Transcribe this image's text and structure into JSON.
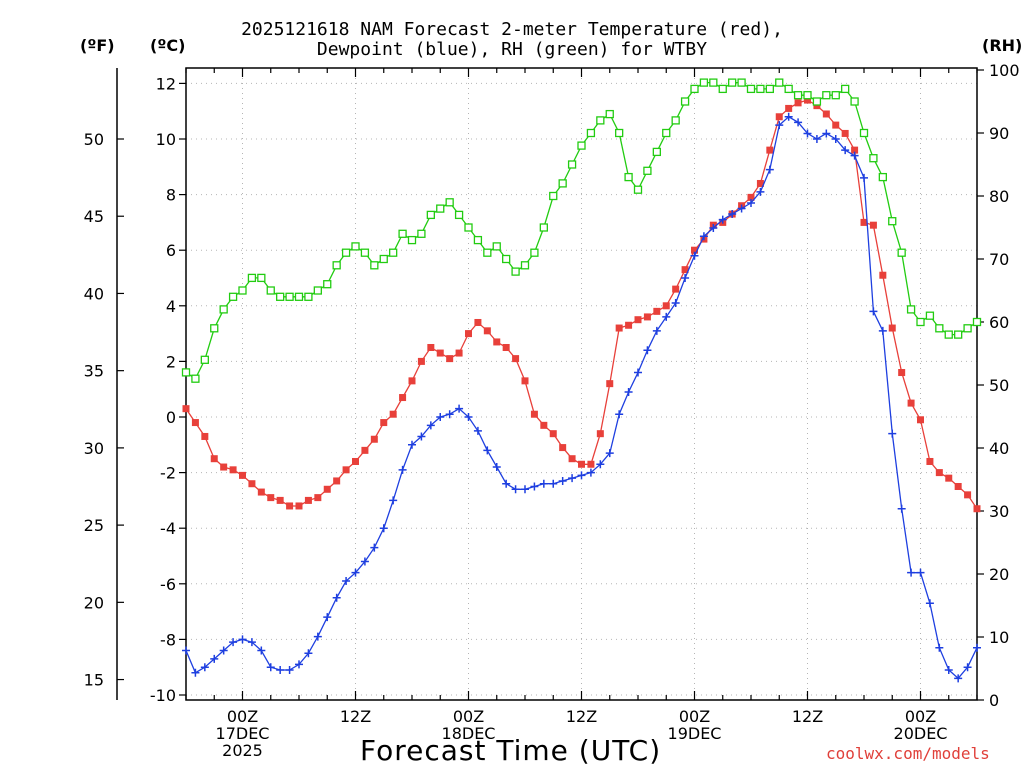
{
  "chart_data": {
    "type": "line",
    "title_line1": "2025121618 NAM Forecast 2-meter Temperature (red),",
    "title_line2": "Dewpoint (blue), RH (green) for WTBY",
    "xlabel": "Forecast Time (UTC)",
    "left_unit_f": "(ºF)",
    "left_unit_c": "(ºC)",
    "right_unit": "(RH)",
    "credit": "coolwx.com/models",
    "ylim_c": [
      -10,
      12.5
    ],
    "ylim_rh": [
      0,
      100
    ],
    "xlim_hours": [
      0,
      84
    ],
    "grid": true,
    "f_ticks": [
      "15",
      "20",
      "25",
      "30",
      "35",
      "40",
      "45",
      "50"
    ],
    "c_ticks": [
      "-10",
      "-8",
      "-6",
      "-4",
      "-2",
      "0",
      "2",
      "4",
      "6",
      "8",
      "10",
      "12"
    ],
    "rh_ticks": [
      "0",
      "10",
      "20",
      "30",
      "40",
      "50",
      "60",
      "70",
      "80",
      "90",
      "100"
    ],
    "x_tick_labels": [
      {
        "hour": 6,
        "lines": [
          "00Z",
          "17DEC",
          "2025"
        ]
      },
      {
        "hour": 18,
        "lines": [
          "12Z"
        ]
      },
      {
        "hour": 30,
        "lines": [
          "00Z",
          "18DEC"
        ]
      },
      {
        "hour": 42,
        "lines": [
          "12Z"
        ]
      },
      {
        "hour": 54,
        "lines": [
          "00Z",
          "19DEC"
        ]
      },
      {
        "hour": 66,
        "lines": [
          "12Z"
        ]
      },
      {
        "hour": 78,
        "lines": [
          "00Z",
          "20DEC"
        ]
      }
    ],
    "series": [
      {
        "key": "temp",
        "color": "#e8403a",
        "marker": "filled-square",
        "x": [
          0,
          1,
          2,
          3,
          4,
          5,
          6,
          7,
          8,
          9,
          10,
          11,
          12,
          13,
          14,
          15,
          16,
          17,
          18,
          19,
          20,
          21,
          22,
          23,
          24,
          25,
          26,
          27,
          28,
          29,
          30,
          31,
          32,
          33,
          34,
          35,
          36,
          37,
          38,
          39,
          40,
          41,
          42,
          43,
          44,
          45,
          46,
          47,
          48,
          49,
          50,
          51,
          52,
          53,
          54,
          55,
          56,
          57,
          58,
          59,
          60,
          61,
          62,
          63,
          64,
          65,
          66,
          67,
          68,
          69,
          70,
          71,
          72,
          73,
          74,
          75,
          76,
          77,
          78,
          79,
          80,
          81,
          82,
          83,
          84
        ],
        "values": [
          0.3,
          -0.2,
          -0.7,
          -1.5,
          -1.8,
          -1.9,
          -2.1,
          -2.4,
          -2.7,
          -2.9,
          -3.0,
          -3.2,
          -3.2,
          -3.0,
          -2.9,
          -2.6,
          -2.3,
          -1.9,
          -1.6,
          -1.2,
          -0.8,
          -0.2,
          0.1,
          0.7,
          1.3,
          2.0,
          2.5,
          2.3,
          2.1,
          2.3,
          3.0,
          3.4,
          3.1,
          2.7,
          2.5,
          2.1,
          1.3,
          0.1,
          -0.3,
          -0.6,
          -1.1,
          -1.5,
          -1.7,
          -1.7,
          -0.6,
          1.2,
          3.2,
          3.3,
          3.5,
          3.6,
          3.8,
          4.0,
          4.6,
          5.3,
          6.0,
          6.4,
          6.9,
          7.0,
          7.3,
          7.6,
          7.9,
          8.4,
          9.6,
          10.8,
          11.1,
          11.3,
          11.4,
          11.2,
          10.9,
          10.5,
          10.2,
          9.6,
          7.0,
          6.9,
          5.1,
          3.2,
          1.6,
          0.5,
          -0.1,
          -1.6,
          -2.0,
          -2.2,
          -2.5,
          -2.8,
          -3.3
        ]
      },
      {
        "key": "dewpoint",
        "color": "#1e3fe0",
        "marker": "plus",
        "x": [
          0,
          1,
          2,
          3,
          4,
          5,
          6,
          7,
          8,
          9,
          10,
          11,
          12,
          13,
          14,
          15,
          16,
          17,
          18,
          19,
          20,
          21,
          22,
          23,
          24,
          25,
          26,
          27,
          28,
          29,
          30,
          31,
          32,
          33,
          34,
          35,
          36,
          37,
          38,
          39,
          40,
          41,
          42,
          43,
          44,
          45,
          46,
          47,
          48,
          49,
          50,
          51,
          52,
          53,
          54,
          55,
          56,
          57,
          58,
          59,
          60,
          61,
          62,
          63,
          64,
          65,
          66,
          67,
          68,
          69,
          70,
          71,
          72,
          73,
          74,
          75,
          76,
          77,
          78,
          79,
          80,
          81,
          82,
          83,
          84
        ],
        "values": [
          -8.4,
          -9.2,
          -9.0,
          -8.7,
          -8.4,
          -8.1,
          -8.0,
          -8.1,
          -8.4,
          -9.0,
          -9.1,
          -9.1,
          -8.9,
          -8.5,
          -7.9,
          -7.2,
          -6.5,
          -5.9,
          -5.6,
          -5.2,
          -4.7,
          -4.0,
          -3.0,
          -1.9,
          -1.0,
          -0.7,
          -0.3,
          0.0,
          0.1,
          0.3,
          0.0,
          -0.5,
          -1.2,
          -1.8,
          -2.4,
          -2.6,
          -2.6,
          -2.5,
          -2.4,
          -2.4,
          -2.3,
          -2.2,
          -2.1,
          -2.0,
          -1.7,
          -1.3,
          0.1,
          0.9,
          1.6,
          2.4,
          3.1,
          3.6,
          4.1,
          5.0,
          5.8,
          6.5,
          6.8,
          7.1,
          7.3,
          7.5,
          7.7,
          8.1,
          8.9,
          10.5,
          10.8,
          10.6,
          10.2,
          10.0,
          10.2,
          10.0,
          9.6,
          9.4,
          8.6,
          3.8,
          3.1,
          -0.6,
          -3.3,
          -5.6,
          -5.6,
          -6.7,
          -8.3,
          -9.1,
          -9.4,
          -9.0,
          -8.3
        ]
      },
      {
        "key": "rh",
        "color": "#22cc11",
        "marker": "open-square",
        "x": [
          0,
          1,
          2,
          3,
          4,
          5,
          6,
          7,
          8,
          9,
          10,
          11,
          12,
          13,
          14,
          15,
          16,
          17,
          18,
          19,
          20,
          21,
          22,
          23,
          24,
          25,
          26,
          27,
          28,
          29,
          30,
          31,
          32,
          33,
          34,
          35,
          36,
          37,
          38,
          39,
          40,
          41,
          42,
          43,
          44,
          45,
          46,
          47,
          48,
          49,
          50,
          51,
          52,
          53,
          54,
          55,
          56,
          57,
          58,
          59,
          60,
          61,
          62,
          63,
          64,
          65,
          66,
          67,
          68,
          69,
          70,
          71,
          72,
          73,
          74,
          75,
          76,
          77,
          78,
          79,
          80,
          81,
          82,
          83,
          84
        ],
        "values": [
          52,
          51,
          54,
          59,
          62,
          64,
          65,
          67,
          67,
          65,
          64,
          64,
          64,
          64,
          65,
          66,
          69,
          71,
          72,
          71,
          69,
          70,
          71,
          74,
          73,
          74,
          77,
          78,
          79,
          77,
          75,
          73,
          71,
          72,
          70,
          68,
          69,
          71,
          75,
          80,
          82,
          85,
          88,
          90,
          92,
          93,
          90,
          83,
          81,
          84,
          87,
          90,
          92,
          95,
          97,
          98,
          98,
          97,
          98,
          98,
          97,
          97,
          97,
          98,
          97,
          96,
          96,
          95,
          96,
          96,
          97,
          95,
          90,
          86,
          83,
          76,
          71,
          62,
          60,
          61,
          59,
          58,
          58,
          59,
          60
        ]
      }
    ]
  }
}
